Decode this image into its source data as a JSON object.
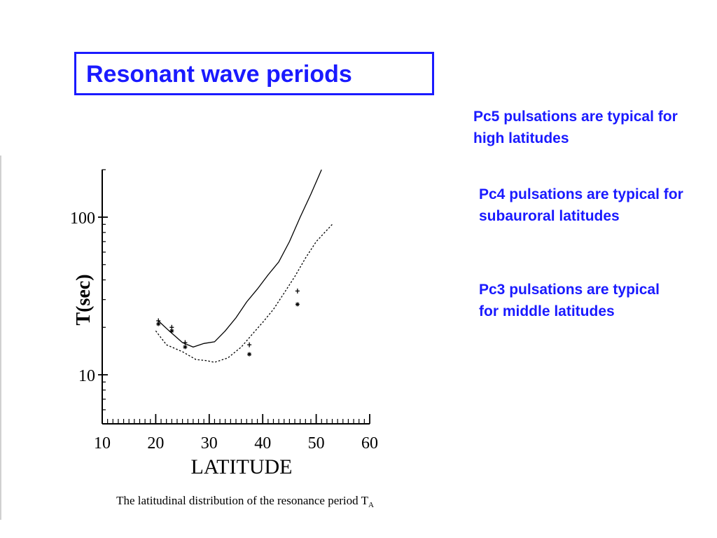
{
  "slide": {
    "title": "Resonant wave periods",
    "notes": [
      "Pc5 pulsations are typical for high latitudes",
      "Pc4 pulsations are typical for subauroral latitudes",
      "Pc3 pulsations are typical for middle latitudes"
    ],
    "text_color": "#1a1aff"
  },
  "chart_data": {
    "type": "line",
    "title": "",
    "caption": "The latitudinal distribution of the resonance period T",
    "caption_subscript": "A",
    "xlabel": "LATITUDE",
    "ylabel": "T(sec)",
    "xlim": [
      10,
      60
    ],
    "ylim": [
      5,
      200
    ],
    "yscale": "log",
    "x_ticks": [
      "10",
      "20",
      "30",
      "40",
      "50",
      "60"
    ],
    "y_ticks": [
      "10",
      "100"
    ],
    "grid": false,
    "series": [
      {
        "style": "solid",
        "points": [
          [
            20.5,
            22
          ],
          [
            22.5,
            19
          ],
          [
            25,
            16
          ],
          [
            27,
            15
          ],
          [
            29,
            15.8
          ],
          [
            31,
            16.2
          ],
          [
            33,
            19
          ],
          [
            35,
            23
          ],
          [
            37,
            29
          ],
          [
            39,
            35
          ],
          [
            41,
            43
          ],
          [
            43,
            52
          ],
          [
            45,
            70
          ],
          [
            47,
            100
          ],
          [
            49,
            140
          ],
          [
            51,
            200
          ]
        ]
      },
      {
        "style": "dashed",
        "points": [
          [
            20,
            19
          ],
          [
            22,
            15.5
          ],
          [
            25,
            14
          ],
          [
            27.5,
            12.5
          ],
          [
            29.5,
            12.3
          ],
          [
            31,
            12.0
          ],
          [
            33.5,
            12.8
          ],
          [
            36,
            15
          ],
          [
            38,
            18
          ],
          [
            40,
            21.5
          ],
          [
            42,
            26
          ],
          [
            44,
            33
          ],
          [
            46,
            42
          ],
          [
            48,
            55
          ],
          [
            50,
            70
          ],
          [
            53,
            90
          ]
        ]
      }
    ],
    "points": [
      {
        "x": 20.5,
        "y": 22,
        "marker": "plus"
      },
      {
        "x": 20.5,
        "y": 21,
        "marker": "star"
      },
      {
        "x": 23,
        "y": 20,
        "marker": "plus"
      },
      {
        "x": 23,
        "y": 19,
        "marker": "star"
      },
      {
        "x": 25.5,
        "y": 16,
        "marker": "plus"
      },
      {
        "x": 25.5,
        "y": 15,
        "marker": "star"
      },
      {
        "x": 37.5,
        "y": 15.5,
        "marker": "plus"
      },
      {
        "x": 37.5,
        "y": 13.5,
        "marker": "star"
      },
      {
        "x": 46.5,
        "y": 34,
        "marker": "plus"
      },
      {
        "x": 46.5,
        "y": 28,
        "marker": "star"
      }
    ]
  }
}
